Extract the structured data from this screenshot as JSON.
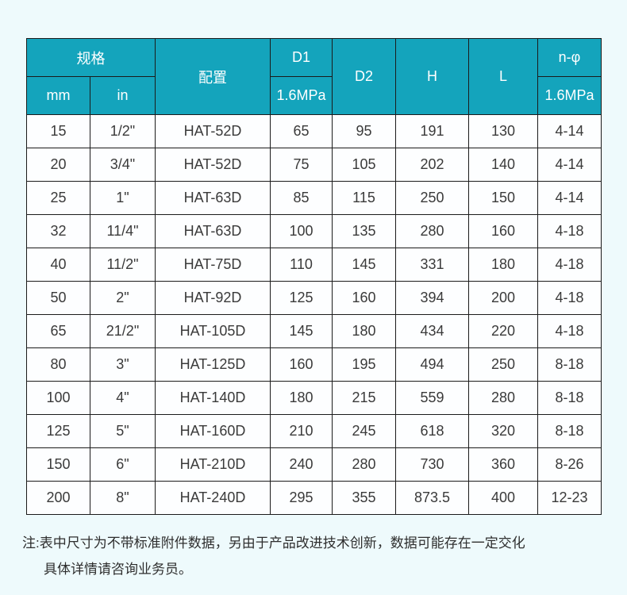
{
  "colors": {
    "header_bg": "#14a4bc",
    "header_text": "#ffffff",
    "page_bg": "#eefafc",
    "cell_bg": "#fdfeff",
    "border": "#1b1b1b",
    "body_text": "#3a3a3a"
  },
  "table": {
    "header": {
      "spec": "规格",
      "mm": "mm",
      "in": "in",
      "config": "配置",
      "d1": "D1",
      "d1_sub": "1.6MPa",
      "d2": "D2",
      "h": "H",
      "l": "L",
      "nphi": "n-φ",
      "nphi_sub": "1.6MPa"
    },
    "columns": [
      "mm",
      "in",
      "配置",
      "D1 1.6MPa",
      "D2",
      "H",
      "L",
      "n-φ 1.6MPa"
    ],
    "rows": [
      [
        "15",
        "1/2\"",
        "HAT-52D",
        "65",
        "95",
        "191",
        "130",
        "4-14"
      ],
      [
        "20",
        "3/4\"",
        "HAT-52D",
        "75",
        "105",
        "202",
        "140",
        "4-14"
      ],
      [
        "25",
        "1\"",
        "HAT-63D",
        "85",
        "115",
        "250",
        "150",
        "4-14"
      ],
      [
        "32",
        "11/4\"",
        "HAT-63D",
        "100",
        "135",
        "280",
        "160",
        "4-18"
      ],
      [
        "40",
        "11/2\"",
        "HAT-75D",
        "110",
        "145",
        "331",
        "180",
        "4-18"
      ],
      [
        "50",
        "2\"",
        "HAT-92D",
        "125",
        "160",
        "394",
        "200",
        "4-18"
      ],
      [
        "65",
        "21/2\"",
        "HAT-105D",
        "145",
        "180",
        "434",
        "220",
        "4-18"
      ],
      [
        "80",
        "3\"",
        "HAT-125D",
        "160",
        "195",
        "494",
        "250",
        "8-18"
      ],
      [
        "100",
        "4\"",
        "HAT-140D",
        "180",
        "215",
        "559",
        "280",
        "8-18"
      ],
      [
        "125",
        "5\"",
        "HAT-160D",
        "210",
        "245",
        "618",
        "320",
        "8-18"
      ],
      [
        "150",
        "6\"",
        "HAT-210D",
        "240",
        "280",
        "730",
        "360",
        "8-26"
      ],
      [
        "200",
        "8\"",
        "HAT-240D",
        "295",
        "355",
        "873.5",
        "400",
        "12-23"
      ]
    ]
  },
  "note": {
    "line1": "注:表中尺寸为不带标准附件数据，另由于产品改进技术创新，数据可能存在一定交化",
    "line2": "具体详情请咨询业务员。"
  }
}
